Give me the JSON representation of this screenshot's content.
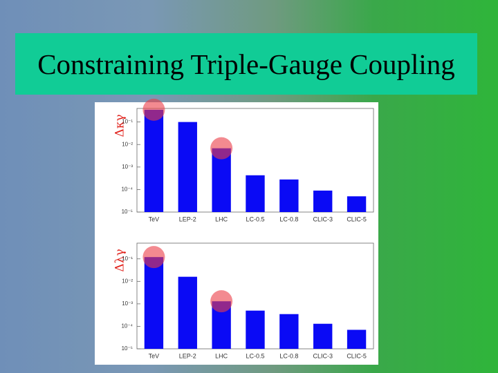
{
  "title": "Constraining Triple-Gauge Coupling",
  "chart_data": [
    {
      "type": "bar",
      "ylabel": "Δκγ",
      "categories": [
        "TeV",
        "LEP-2",
        "LHC",
        "LC-0.5",
        "LC-0.8",
        "CLIC-3",
        "CLIC-5"
      ],
      "values": [
        0.35,
        0.1,
        0.0068,
        0.00043,
        0.00028,
        9e-05,
        5e-05
      ],
      "color": "#0a0af5",
      "log_scale": true,
      "ylim": [
        1e-05,
        0.4
      ],
      "yticks": [
        {
          "value": 0.1,
          "label": "10⁻¹"
        },
        {
          "value": 0.01,
          "label": "10⁻²"
        },
        {
          "value": 0.001,
          "label": "10⁻³"
        },
        {
          "value": 0.0001,
          "label": "10⁻⁴"
        },
        {
          "value": 1e-05,
          "label": "10⁻⁵"
        }
      ]
    },
    {
      "type": "bar",
      "ylabel": "Δλγ",
      "categories": [
        "TeV",
        "LEP-2",
        "LHC",
        "LC-0.5",
        "LC-0.8",
        "CLIC-3",
        "CLIC-5"
      ],
      "values": [
        0.12,
        0.016,
        0.0013,
        0.0005,
        0.00035,
        0.00013,
        7e-05
      ],
      "color": "#0a0af5",
      "log_scale": true,
      "ylim": [
        1e-05,
        0.5
      ],
      "yticks": [
        {
          "value": 0.1,
          "label": "10⁻¹"
        },
        {
          "value": 0.01,
          "label": "10⁻²"
        },
        {
          "value": 0.001,
          "label": "10⁻³"
        },
        {
          "value": 0.0001,
          "label": "10⁻⁴"
        },
        {
          "value": 1e-05,
          "label": "10⁻⁵"
        }
      ]
    }
  ]
}
